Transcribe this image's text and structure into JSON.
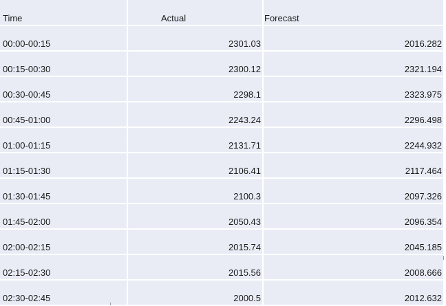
{
  "table": {
    "headers": [
      "Time",
      "Actual",
      "Forecast"
    ],
    "rows": [
      [
        "00:00-00:15",
        "2301.03",
        "2016.282"
      ],
      [
        "00:15-00:30",
        "2300.12",
        "2321.194"
      ],
      [
        "00:30-00:45",
        "2298.1",
        "2323.975"
      ],
      [
        "00:45-01:00",
        "2243.24",
        "2296.498"
      ],
      [
        "01:00-01:15",
        "2131.71",
        "2244.932"
      ],
      [
        "01:15-01:30",
        "2106.41",
        "2117.464"
      ],
      [
        "01:30-01:45",
        "2100.3",
        "2097.326"
      ],
      [
        "01:45-02:00",
        "2050.43",
        "2096.354"
      ],
      [
        "02:00-02:15",
        "2015.74",
        "2045.185"
      ],
      [
        "02:15-02:30",
        "2015.56",
        "2008.666"
      ],
      [
        "02:30-02:45",
        "2000.5",
        "2012.632"
      ]
    ]
  },
  "colors": {
    "cell_background": "#e9ecf5",
    "grid_lines": "#ffffff",
    "text": "#1a1a1a"
  }
}
